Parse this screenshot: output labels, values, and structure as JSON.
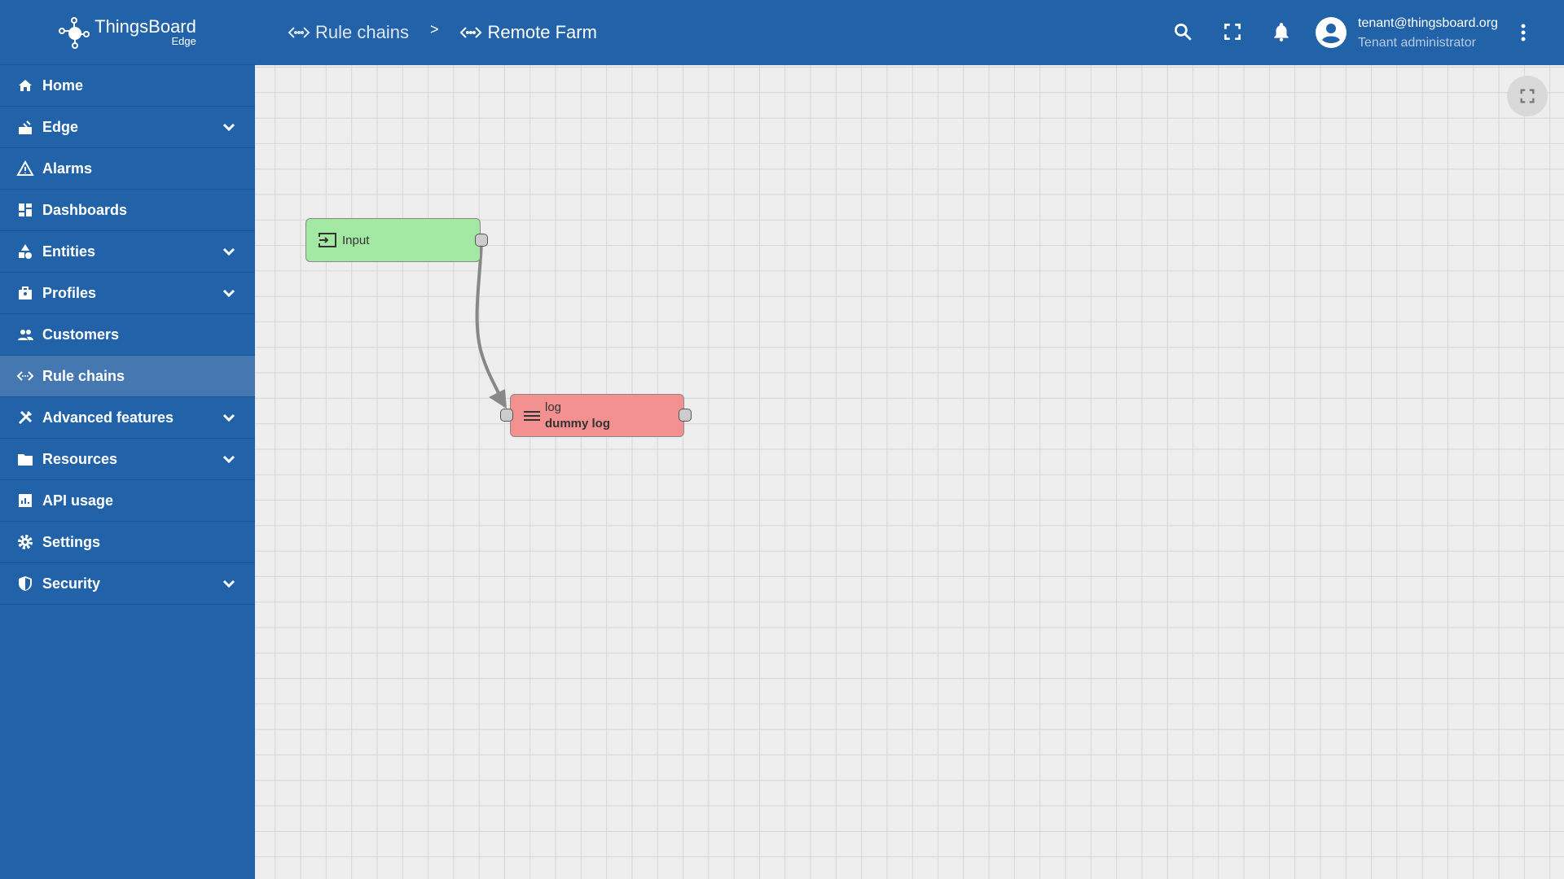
{
  "app": {
    "title": "ThingsBoard",
    "subtitle": "Edge"
  },
  "breadcrumb": [
    {
      "label": "Rule chains",
      "icon": "code-arrows-icon"
    },
    {
      "label": "Remote Farm",
      "icon": "code-arrows-icon"
    }
  ],
  "breadcrumb_separator": ">",
  "user": {
    "email": "tenant@thingsboard.org",
    "role": "Tenant administrator"
  },
  "sidebar": {
    "items": [
      {
        "label": "Home",
        "icon": "home-icon",
        "expandable": false
      },
      {
        "label": "Edge",
        "icon": "router-icon",
        "expandable": true
      },
      {
        "label": "Alarms",
        "icon": "warning-icon",
        "expandable": false
      },
      {
        "label": "Dashboards",
        "icon": "dashboard-icon",
        "expandable": false
      },
      {
        "label": "Entities",
        "icon": "category-icon",
        "expandable": true
      },
      {
        "label": "Profiles",
        "icon": "badge-icon",
        "expandable": true
      },
      {
        "label": "Customers",
        "icon": "people-icon",
        "expandable": false
      },
      {
        "label": "Rule chains",
        "icon": "code-arrows-icon",
        "expandable": false,
        "active": true
      },
      {
        "label": "Advanced features",
        "icon": "tools-icon",
        "expandable": true
      },
      {
        "label": "Resources",
        "icon": "folder-icon",
        "expandable": true
      },
      {
        "label": "API usage",
        "icon": "chart-icon",
        "expandable": false
      },
      {
        "label": "Settings",
        "icon": "gear-icon",
        "expandable": false
      },
      {
        "label": "Security",
        "icon": "shield-icon",
        "expandable": true
      }
    ]
  },
  "nodes": {
    "input": {
      "label": "Input",
      "color": "#a3e9a4"
    },
    "log": {
      "type": "log",
      "name": "dummy log",
      "color": "#f39191"
    }
  },
  "colors": {
    "primary": "#2162a8",
    "active": "#4577b0"
  }
}
